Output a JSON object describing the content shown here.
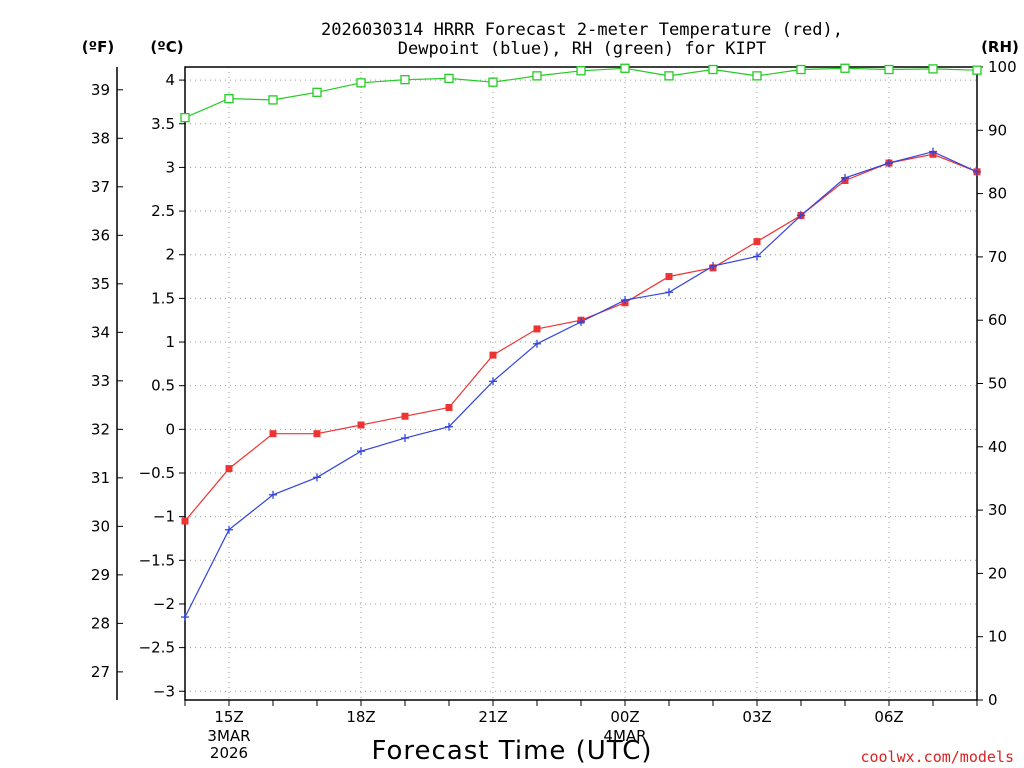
{
  "chart_data": {
    "type": "line",
    "title_lines": [
      "2026030314 HRRR Forecast 2-meter Temperature (red),",
      "Dewpoint (blue), RH (green) for KIPT"
    ],
    "xlabel": "Forecast Time (UTC)",
    "units": {
      "fahrenheit": "(ºF)",
      "celsius": "(ºC)",
      "rh": "(RH)"
    },
    "x": [
      "14Z",
      "15Z",
      "16Z",
      "17Z",
      "18Z",
      "19Z",
      "20Z",
      "21Z",
      "22Z",
      "23Z",
      "00Z",
      "01Z",
      "02Z",
      "03Z",
      "04Z",
      "05Z",
      "06Z",
      "07Z",
      "08Z"
    ],
    "x_ticks": [
      {
        "label": "15Z",
        "sub": [
          "3MAR",
          "2026"
        ]
      },
      {
        "label": "18Z",
        "sub": []
      },
      {
        "label": "21Z",
        "sub": []
      },
      {
        "label": "00Z",
        "sub": [
          "4MAR"
        ]
      },
      {
        "label": "03Z",
        "sub": []
      },
      {
        "label": "06Z",
        "sub": []
      }
    ],
    "y_left_c": {
      "label": "(ºC)",
      "ticks": [
        "−3",
        "−2.5",
        "−2",
        "−1.5",
        "−1",
        "−0.5",
        "0",
        "0.5",
        "1",
        "1.5",
        "2",
        "2.5",
        "3",
        "3.5",
        "4"
      ],
      "range": [
        -3.1,
        4.15
      ]
    },
    "y_left_f": {
      "label": "(ºF)",
      "ticks": [
        "27",
        "28",
        "29",
        "30",
        "31",
        "32",
        "33",
        "34",
        "35",
        "36",
        "37",
        "38",
        "39"
      ]
    },
    "y_right_rh": {
      "label": "(RH)",
      "ticks": [
        "0",
        "10",
        "20",
        "30",
        "40",
        "50",
        "60",
        "70",
        "80",
        "90",
        "100"
      ],
      "range": [
        0,
        100
      ]
    },
    "grid": true,
    "series": [
      {
        "name": "Temperature",
        "axis": "c",
        "color": "#ee3333",
        "marker": "filled-square",
        "values": [
          -1.05,
          -0.45,
          -0.05,
          -0.05,
          0.05,
          0.15,
          0.25,
          0.85,
          1.15,
          1.25,
          1.45,
          1.75,
          1.85,
          2.15,
          2.45,
          2.85,
          3.05,
          3.15,
          2.95
        ]
      },
      {
        "name": "Dewpoint",
        "axis": "c",
        "color": "#3344dd",
        "marker": "plus",
        "values": [
          -2.15,
          -1.15,
          -0.75,
          -0.55,
          -0.25,
          -0.1,
          0.03,
          0.55,
          0.98,
          1.23,
          1.48,
          1.57,
          1.87,
          1.98,
          2.45,
          2.88,
          3.05,
          3.18,
          2.95
        ]
      },
      {
        "name": "RH",
        "axis": "rh",
        "color": "#22cc22",
        "marker": "open-square",
        "values": [
          92,
          95,
          94.8,
          96,
          97.5,
          98,
          98.2,
          97.6,
          98.6,
          99.4,
          99.8,
          98.6,
          99.6,
          98.6,
          99.6,
          99.8,
          99.6,
          99.7,
          99.5
        ]
      }
    ]
  },
  "credit": "coolwx.com/models"
}
